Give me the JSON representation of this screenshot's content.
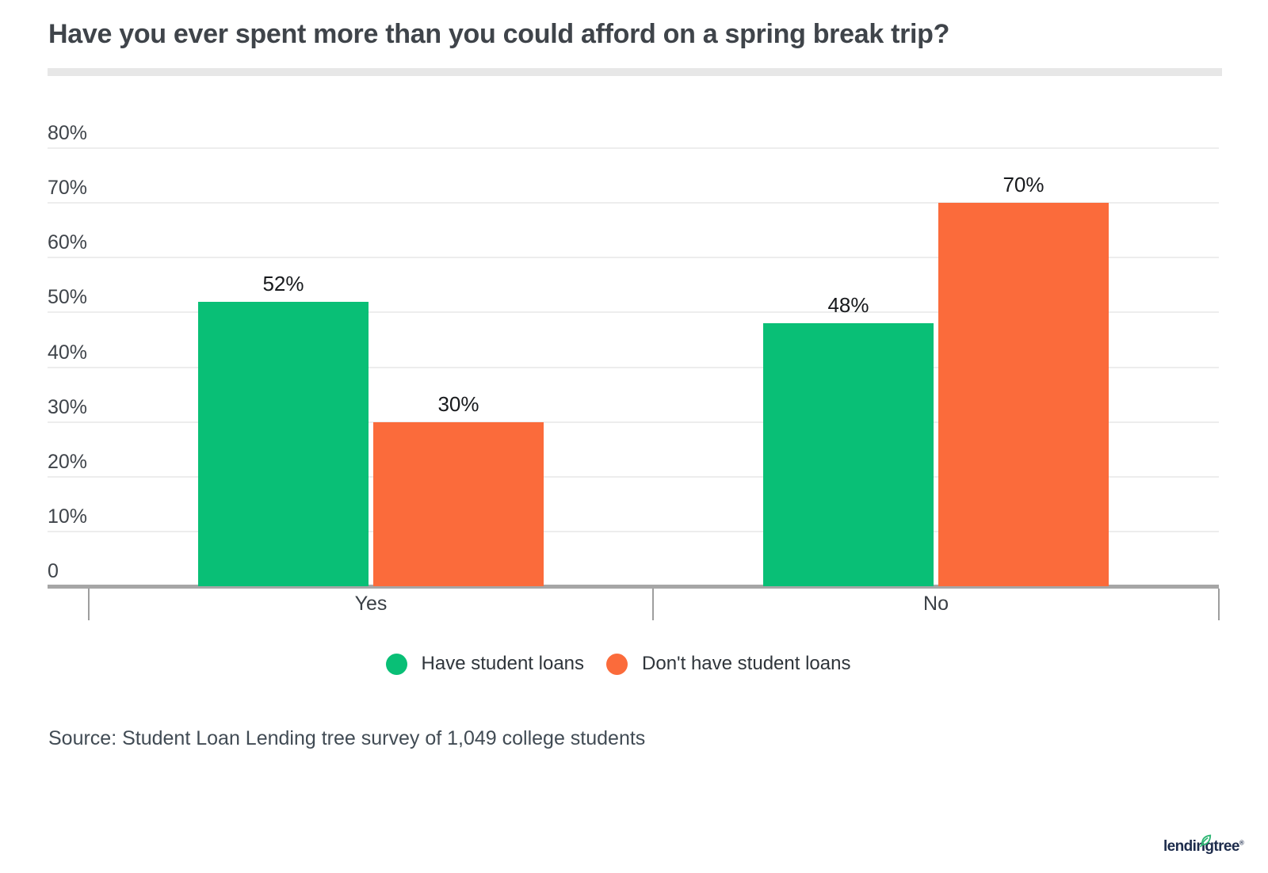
{
  "title": "Have you ever spent more than you could afford on a spring break trip?",
  "source": "Source: Student Loan Lending tree survey of 1,049 college students",
  "logo": {
    "text": "lendingtree",
    "registered": "®",
    "text_color": "#1d2c4c",
    "leaf_color": "#2db673"
  },
  "colors": {
    "green": "#09bf76",
    "orange": "#fb6b3b",
    "gridline": "#ededed",
    "axis_line": "#a6a6a6",
    "text_dark": "#3f444a"
  },
  "legend": {
    "items": [
      {
        "label": "Have student loans",
        "color": "#09bf76"
      },
      {
        "label": "Don't have student loans",
        "color": "#fb6b3b"
      }
    ]
  },
  "chart_data": {
    "type": "bar",
    "title": "Have you ever spent more than you could afford on a spring break trip?",
    "categories": [
      "Yes",
      "No"
    ],
    "series": [
      {
        "name": "Have student loans",
        "color": "#09bf76",
        "values": [
          52,
          48
        ]
      },
      {
        "name": "Don't have student loans",
        "color": "#fb6b3b",
        "values": [
          30,
          70
        ]
      }
    ],
    "data_labels": [
      [
        "52%",
        "48%"
      ],
      [
        "30%",
        "70%"
      ]
    ],
    "xlabel": "",
    "ylabel": "",
    "ylim": [
      0,
      80
    ],
    "ytick_step": 10,
    "ytick_labels": [
      "0",
      "10%",
      "20%",
      "30%",
      "40%",
      "50%",
      "60%",
      "70%",
      "80%"
    ],
    "grid": true,
    "legend_position": "bottom"
  }
}
